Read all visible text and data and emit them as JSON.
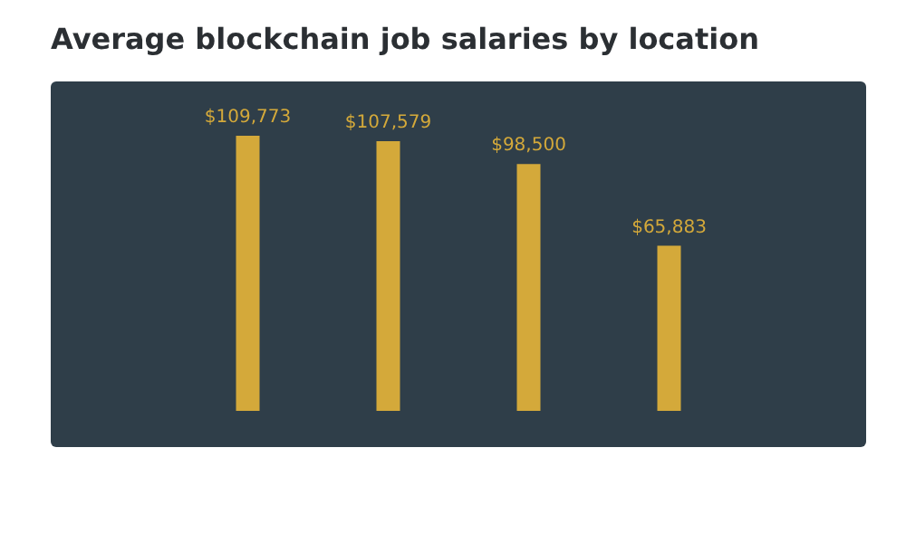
{
  "chart_data": {
    "type": "bar",
    "title": "Average blockchain job salaries by location",
    "categories": [
      null,
      null,
      null,
      null
    ],
    "values": [
      109773,
      107579,
      98500,
      65883
    ],
    "value_labels": [
      "$109,773",
      "$107,579",
      "$98,500",
      "$65,883"
    ],
    "color": "#d4a93a",
    "grid": false
  }
}
